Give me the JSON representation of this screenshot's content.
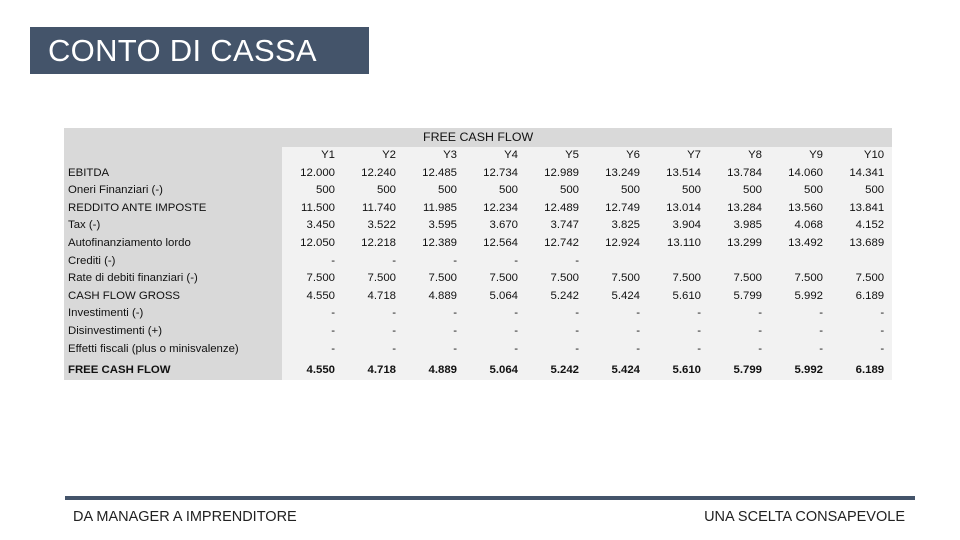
{
  "title": "CONTO DI CASSA",
  "table": {
    "caption": "FREE CASH FLOW",
    "years": [
      "Y1",
      "Y2",
      "Y3",
      "Y4",
      "Y5",
      "Y6",
      "Y7",
      "Y8",
      "Y9",
      "Y10"
    ],
    "rows": [
      {
        "label": "EBITDA",
        "values": [
          "12.000",
          "12.240",
          "12.485",
          "12.734",
          "12.989",
          "13.249",
          "13.514",
          "13.784",
          "14.060",
          "14.341"
        ]
      },
      {
        "label": "Oneri Finanziari (-)",
        "values": [
          "500",
          "500",
          "500",
          "500",
          "500",
          "500",
          "500",
          "500",
          "500",
          "500"
        ]
      },
      {
        "label": "REDDITO ANTE IMPOSTE",
        "values": [
          "11.500",
          "11.740",
          "11.985",
          "12.234",
          "12.489",
          "12.749",
          "13.014",
          "13.284",
          "13.560",
          "13.841"
        ]
      },
      {
        "label": "Tax (-)",
        "values": [
          "3.450",
          "3.522",
          "3.595",
          "3.670",
          "3.747",
          "3.825",
          "3.904",
          "3.985",
          "4.068",
          "4.152"
        ]
      },
      {
        "label": "Autofinanziamento lordo",
        "values": [
          "12.050",
          "12.218",
          "12.389",
          "12.564",
          "12.742",
          "12.924",
          "13.110",
          "13.299",
          "13.492",
          "13.689"
        ]
      },
      {
        "label": "Crediti (-)",
        "values": [
          "-",
          "-",
          "-",
          "-",
          "-",
          "",
          "",
          "",
          "",
          ""
        ]
      },
      {
        "label": "Rate di debiti finanziari (-)",
        "values": [
          "7.500",
          "7.500",
          "7.500",
          "7.500",
          "7.500",
          "7.500",
          "7.500",
          "7.500",
          "7.500",
          "7.500"
        ]
      },
      {
        "label": "CASH FLOW GROSS",
        "values": [
          "4.550",
          "4.718",
          "4.889",
          "5.064",
          "5.242",
          "5.424",
          "5.610",
          "5.799",
          "5.992",
          "6.189"
        ]
      },
      {
        "label": "Investimenti (-)",
        "values": [
          "-",
          "-",
          "-",
          "-",
          "-",
          "-",
          "-",
          "-",
          "-",
          "-"
        ]
      },
      {
        "label": "Disinvestimenti (+)",
        "values": [
          "-",
          "-",
          "-",
          "-",
          "-",
          "-",
          "-",
          "-",
          "-",
          "-"
        ]
      },
      {
        "label": "Effetti fiscali (plus o minisvalenze)",
        "values": [
          "-",
          "-",
          "-",
          "-",
          "-",
          "-",
          "-",
          "-",
          "-",
          "-"
        ]
      }
    ],
    "total": {
      "label": "FREE CASH FLOW",
      "values": [
        "4.550",
        "4.718",
        "4.889",
        "5.064",
        "5.242",
        "5.424",
        "5.610",
        "5.799",
        "5.992",
        "6.189"
      ]
    }
  },
  "footer": {
    "left": "DA MANAGER A IMPRENDITORE",
    "right": "UNA SCELTA CONSAPEVOLE"
  },
  "colors": {
    "title_bg": "#44546a",
    "table_header_bg": "#d9d9d9",
    "table_body_bg": "#f2f2f2"
  }
}
